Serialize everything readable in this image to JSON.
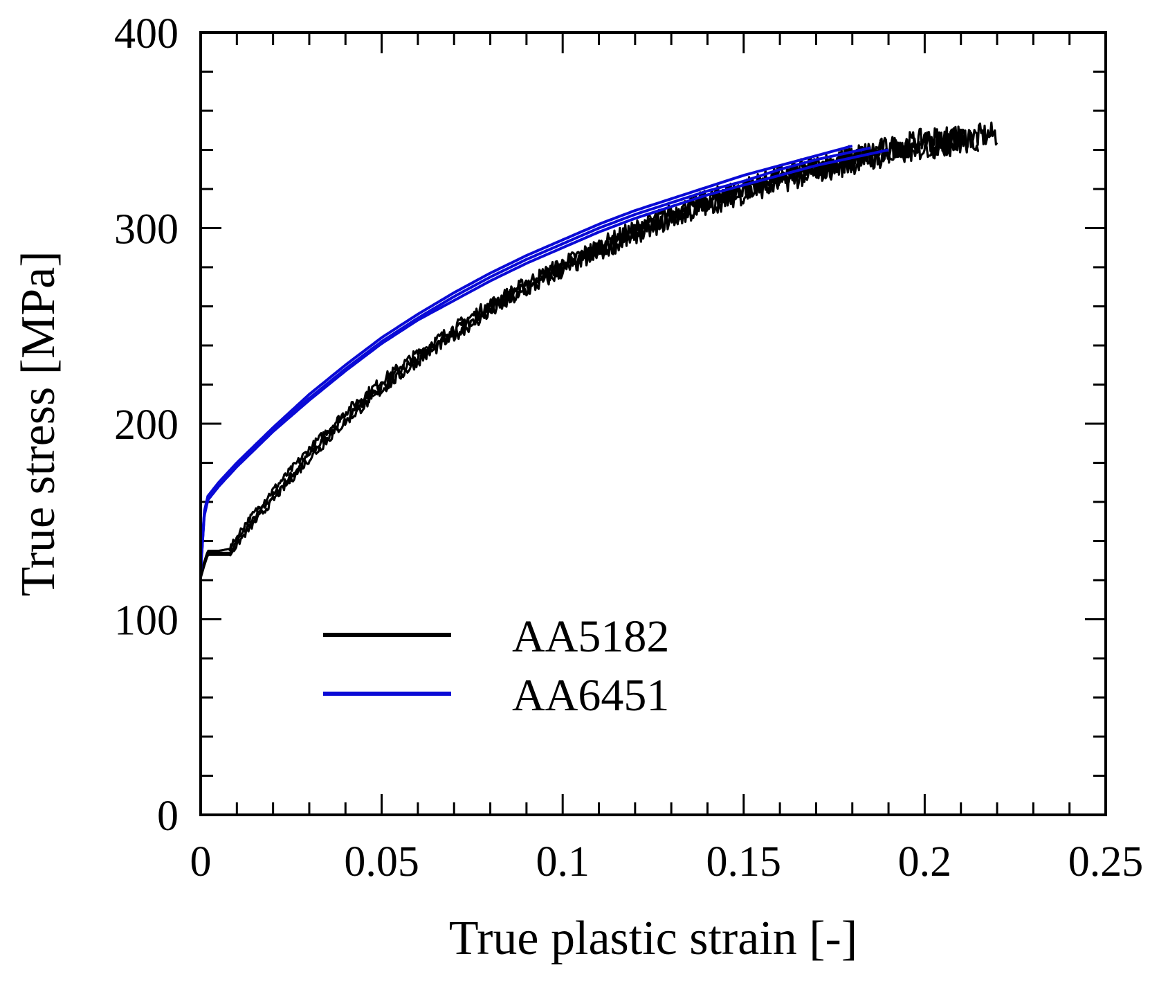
{
  "chart_data": {
    "type": "line",
    "xlabel": "True plastic strain [-]",
    "ylabel": "True stress [MPa]",
    "xlim": [
      0,
      0.25
    ],
    "ylim": [
      0,
      400
    ],
    "x_ticks": [
      0,
      0.05,
      0.1,
      0.15,
      0.2,
      0.25
    ],
    "x_tick_labels": [
      "0",
      "0.05",
      "0.1",
      "0.15",
      "0.2",
      "0.25"
    ],
    "y_ticks": [
      0,
      100,
      200,
      300,
      400
    ],
    "y_tick_labels": [
      "0",
      "100",
      "200",
      "300",
      "400"
    ],
    "x_minor_step": 0.01,
    "y_minor_step": 20,
    "grid": false,
    "legend_position": "center-left",
    "series": [
      {
        "name": "AA5182",
        "color": "#000000",
        "noisy": true,
        "curves": [
          {
            "x": [
              0,
              0.002,
              0.005,
              0.008,
              0.012,
              0.02,
              0.03,
              0.04,
              0.05,
              0.06,
              0.07,
              0.08,
              0.09,
              0.1,
              0.11,
              0.12,
              0.13,
              0.14,
              0.15,
              0.16,
              0.17,
              0.18,
              0.19,
              0.2,
              0.21,
              0.22
            ],
            "y": [
              121,
              134,
              134,
              134,
              145,
              163,
              184,
              203,
              219,
              234,
              247,
              259,
              270,
              280,
              289,
              298,
              306,
              313,
              319,
              325,
              330,
              335,
              339,
              343,
              346,
              348
            ]
          },
          {
            "x": [
              0,
              0.002,
              0.005,
              0.008,
              0.012,
              0.02,
              0.03,
              0.04,
              0.05,
              0.06,
              0.07,
              0.08,
              0.09,
              0.1,
              0.11,
              0.12,
              0.13,
              0.14,
              0.15,
              0.16,
              0.17,
              0.18,
              0.19,
              0.2,
              0.21
            ],
            "y": [
              124,
              135,
              135,
              136,
              148,
              166,
              187,
              206,
              222,
              236,
              249,
              261,
              272,
              282,
              291,
              300,
              308,
              315,
              321,
              327,
              332,
              337,
              341,
              345,
              347
            ]
          },
          {
            "x": [
              0,
              0.002,
              0.005,
              0.008,
              0.012,
              0.02,
              0.03,
              0.04,
              0.05,
              0.06,
              0.07,
              0.08,
              0.09,
              0.1,
              0.11,
              0.12,
              0.13,
              0.14,
              0.15,
              0.16,
              0.17,
              0.18,
              0.19,
              0.2,
              0.215
            ],
            "y": [
              122,
              133,
              133,
              133,
              143,
              161,
              182,
              201,
              217,
              232,
              245,
              257,
              268,
              278,
              287,
              296,
              304,
              311,
              317,
              323,
              328,
              333,
              337,
              341,
              345
            ]
          }
        ]
      },
      {
        "name": "AA6451",
        "color": "#0a0ad6",
        "noisy": false,
        "curves": [
          {
            "x": [
              0,
              0.001,
              0.002,
              0.005,
              0.01,
              0.02,
              0.03,
              0.04,
              0.05,
              0.06,
              0.07,
              0.08,
              0.09,
              0.1,
              0.11,
              0.12,
              0.13,
              0.14,
              0.15,
              0.16,
              0.17,
              0.18
            ],
            "y": [
              125,
              155,
              163,
              170,
              180,
              198,
              215,
              230,
              244,
              256,
              267,
              277,
              286,
              294,
              302,
              309,
              315,
              321,
              327,
              332,
              337,
              342
            ]
          },
          {
            "x": [
              0,
              0.001,
              0.002,
              0.005,
              0.01,
              0.02,
              0.03,
              0.04,
              0.05,
              0.06,
              0.07,
              0.08,
              0.09,
              0.1,
              0.11,
              0.12,
              0.13,
              0.14,
              0.15,
              0.16,
              0.17,
              0.185
            ],
            "y": [
              125,
              154,
              162,
              169,
              179,
              197,
              213,
              228,
              242,
              254,
              265,
              275,
              284,
              292,
              300,
              307,
              313,
              319,
              324,
              330,
              335,
              341
            ]
          },
          {
            "x": [
              0,
              0.001,
              0.002,
              0.005,
              0.01,
              0.02,
              0.03,
              0.04,
              0.05,
              0.06,
              0.07,
              0.08,
              0.09,
              0.1,
              0.11,
              0.12,
              0.13,
              0.14,
              0.15,
              0.16,
              0.17,
              0.18,
              0.19
            ],
            "y": [
              125,
              153,
              161,
              168,
              178,
              196,
              212,
              227,
              241,
              253,
              263,
              273,
              282,
              290,
              298,
              305,
              311,
              317,
              322,
              327,
              332,
              336,
              340
            ]
          }
        ]
      }
    ]
  }
}
